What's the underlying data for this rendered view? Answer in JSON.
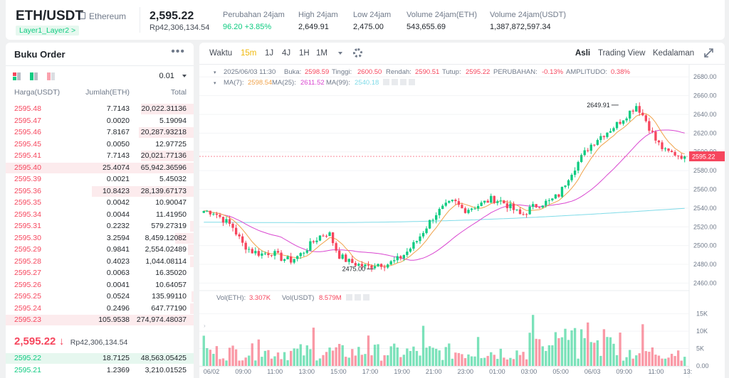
{
  "ticker": {
    "pair": "ETH/USDT",
    "fullname": "Ethereum",
    "layer_badge": "Layer1_Layer2 >",
    "price": "2,595.22",
    "price_idr": "Rp42,306,134.54",
    "stats": [
      {
        "label": "Perubahan 24jam",
        "value": "96.20 +3.85%",
        "positive": true
      },
      {
        "label": "High 24jam",
        "value": "2,649.91",
        "positive": false
      },
      {
        "label": "Low 24jam",
        "value": "2,475.00",
        "positive": false
      },
      {
        "label": "Volume 24jam(ETH)",
        "value": "543,655.69",
        "positive": false
      },
      {
        "label": "Volume 24jam(USDT)",
        "value": "1,387,872,597.34",
        "positive": false
      }
    ]
  },
  "orderbook": {
    "title": "Buku Order",
    "more": "•••",
    "tick_size": "0.01",
    "headers": {
      "price": "Harga(USDT)",
      "amount": "Jumlah(ETH)",
      "total": "Total"
    },
    "asks": [
      {
        "price": "2595.48",
        "qty": "7.7143",
        "total": "20,022.31136",
        "depth": 0.28
      },
      {
        "price": "2595.47",
        "qty": "0.0020",
        "total": "5.19094",
        "depth": 0.0
      },
      {
        "price": "2595.46",
        "qty": "7.8167",
        "total": "20,287.93218",
        "depth": 0.29
      },
      {
        "price": "2595.45",
        "qty": "0.0050",
        "total": "12.97725",
        "depth": 0.0
      },
      {
        "price": "2595.41",
        "qty": "7.7143",
        "total": "20,021.77136",
        "depth": 0.28
      },
      {
        "price": "2595.40",
        "qty": "25.4074",
        "total": "65,942.36596",
        "depth": 1.0
      },
      {
        "price": "2595.39",
        "qty": "0.0021",
        "total": "5.45032",
        "depth": 0.0
      },
      {
        "price": "2595.36",
        "qty": "10.8423",
        "total": "28,139.67173",
        "depth": 0.54
      },
      {
        "price": "2595.35",
        "qty": "0.0042",
        "total": "10.90047",
        "depth": 0.0
      },
      {
        "price": "2595.34",
        "qty": "0.0044",
        "total": "11.41950",
        "depth": 0.0
      },
      {
        "price": "2595.31",
        "qty": "0.2232",
        "total": "579.27319",
        "depth": 0.02
      },
      {
        "price": "2595.30",
        "qty": "3.2594",
        "total": "8,459.12082",
        "depth": 0.1
      },
      {
        "price": "2595.29",
        "qty": "0.9841",
        "total": "2,554.02489",
        "depth": 0.03
      },
      {
        "price": "2595.28",
        "qty": "0.4023",
        "total": "1,044.08114",
        "depth": 0.02
      },
      {
        "price": "2595.27",
        "qty": "0.0063",
        "total": "16.35020",
        "depth": 0.0
      },
      {
        "price": "2595.26",
        "qty": "0.0041",
        "total": "10.64057",
        "depth": 0.0
      },
      {
        "price": "2595.25",
        "qty": "0.0524",
        "total": "135.99110",
        "depth": 0.01
      },
      {
        "price": "2595.24",
        "qty": "0.2496",
        "total": "647.77190",
        "depth": 0.02
      },
      {
        "price": "2595.23",
        "qty": "105.9538",
        "total": "274,974.48037",
        "depth": 1.0
      }
    ],
    "last_price": "2,595.22",
    "last_arrow": "↓",
    "last_idr": "Rp42,306,134.54",
    "bids": [
      {
        "price": "2595.22",
        "qty": "18.7125",
        "total": "48,563.05425",
        "depth": 1.0
      },
      {
        "price": "2595.21",
        "qty": "1.2369",
        "total": "3,210.01525",
        "depth": 0.0
      }
    ]
  },
  "chart_toolbar": {
    "time_label": "Waktu",
    "intervals": [
      "15m",
      "1J",
      "4J",
      "1H",
      "1M"
    ],
    "active_interval": "15m",
    "views": [
      "Asli",
      "Trading View",
      "Kedalaman"
    ],
    "active_view": "Asli"
  },
  "chart_data": {
    "type": "candlestick",
    "symbol": "ETH/USDT",
    "interval": "15m",
    "info": {
      "date": "2025/06/03 11:30",
      "open_label": "Buka:",
      "open": "2598.59",
      "high_label": "Tinggi:",
      "high": "2600.50",
      "low_label": "Rendah:",
      "low": "2590.51",
      "close_label": "Tutup:",
      "close": "2595.22",
      "change_label": "PERUBAHAN:",
      "change": "-0.13%",
      "amp_label": "AMPLITUDO:",
      "amp": "0.38%"
    },
    "ma_legend": {
      "ma7_label": "MA(7):",
      "ma7": "2598.54",
      "ma25_label": "MA(25):",
      "ma25": "2611.52",
      "ma99_label": "MA(99):",
      "ma99": "2540.18"
    },
    "vol_legend": {
      "eth_label": "Vol(ETH):",
      "eth": "3.307K",
      "usdt_label": "Vol(USDT)",
      "usdt": "8.579M"
    },
    "ylim": [
      2455,
      2690
    ],
    "y_ticks": [
      2460,
      2480,
      2500,
      2520,
      2540,
      2560,
      2580,
      2600,
      2620,
      2640,
      2660,
      2680
    ],
    "current_price": "2595.22",
    "high_marker": {
      "label": "2649.91",
      "value": 2649.91
    },
    "low_marker": {
      "label": "2475.00",
      "value": 2475.0
    },
    "vol_ticks": [
      "15K",
      "10K",
      "5K",
      "0.00"
    ],
    "vol_ylim": [
      0,
      18000
    ],
    "x_ticks": [
      "06/02",
      "09:00",
      "11:00",
      "13:00",
      "15:00",
      "17:00",
      "19:00",
      "21:00",
      "23:00",
      "01:00",
      "03:00",
      "05:00",
      "06/03",
      "09:00",
      "11:00",
      "13:"
    ],
    "key_closes": [
      2537,
      2536,
      2528,
      2520,
      2502,
      2494,
      2491,
      2493,
      2487,
      2484,
      2490,
      2500,
      2510,
      2514,
      2490,
      2483,
      2480,
      2477,
      2481,
      2480,
      2484,
      2492,
      2503,
      2518,
      2533,
      2541,
      2547,
      2538,
      2541,
      2545,
      2550,
      2547,
      2540,
      2532,
      2540,
      2545,
      2547,
      2555,
      2575,
      2590,
      2605,
      2615,
      2622,
      2630,
      2640,
      2650,
      2633,
      2612,
      2600,
      2598,
      2595
    ],
    "colors": {
      "up": "#0ecb81",
      "down": "#f6465d",
      "ma7": "#f0a24a",
      "ma25": "#d946d0",
      "ma99": "#7fdbe8"
    }
  }
}
